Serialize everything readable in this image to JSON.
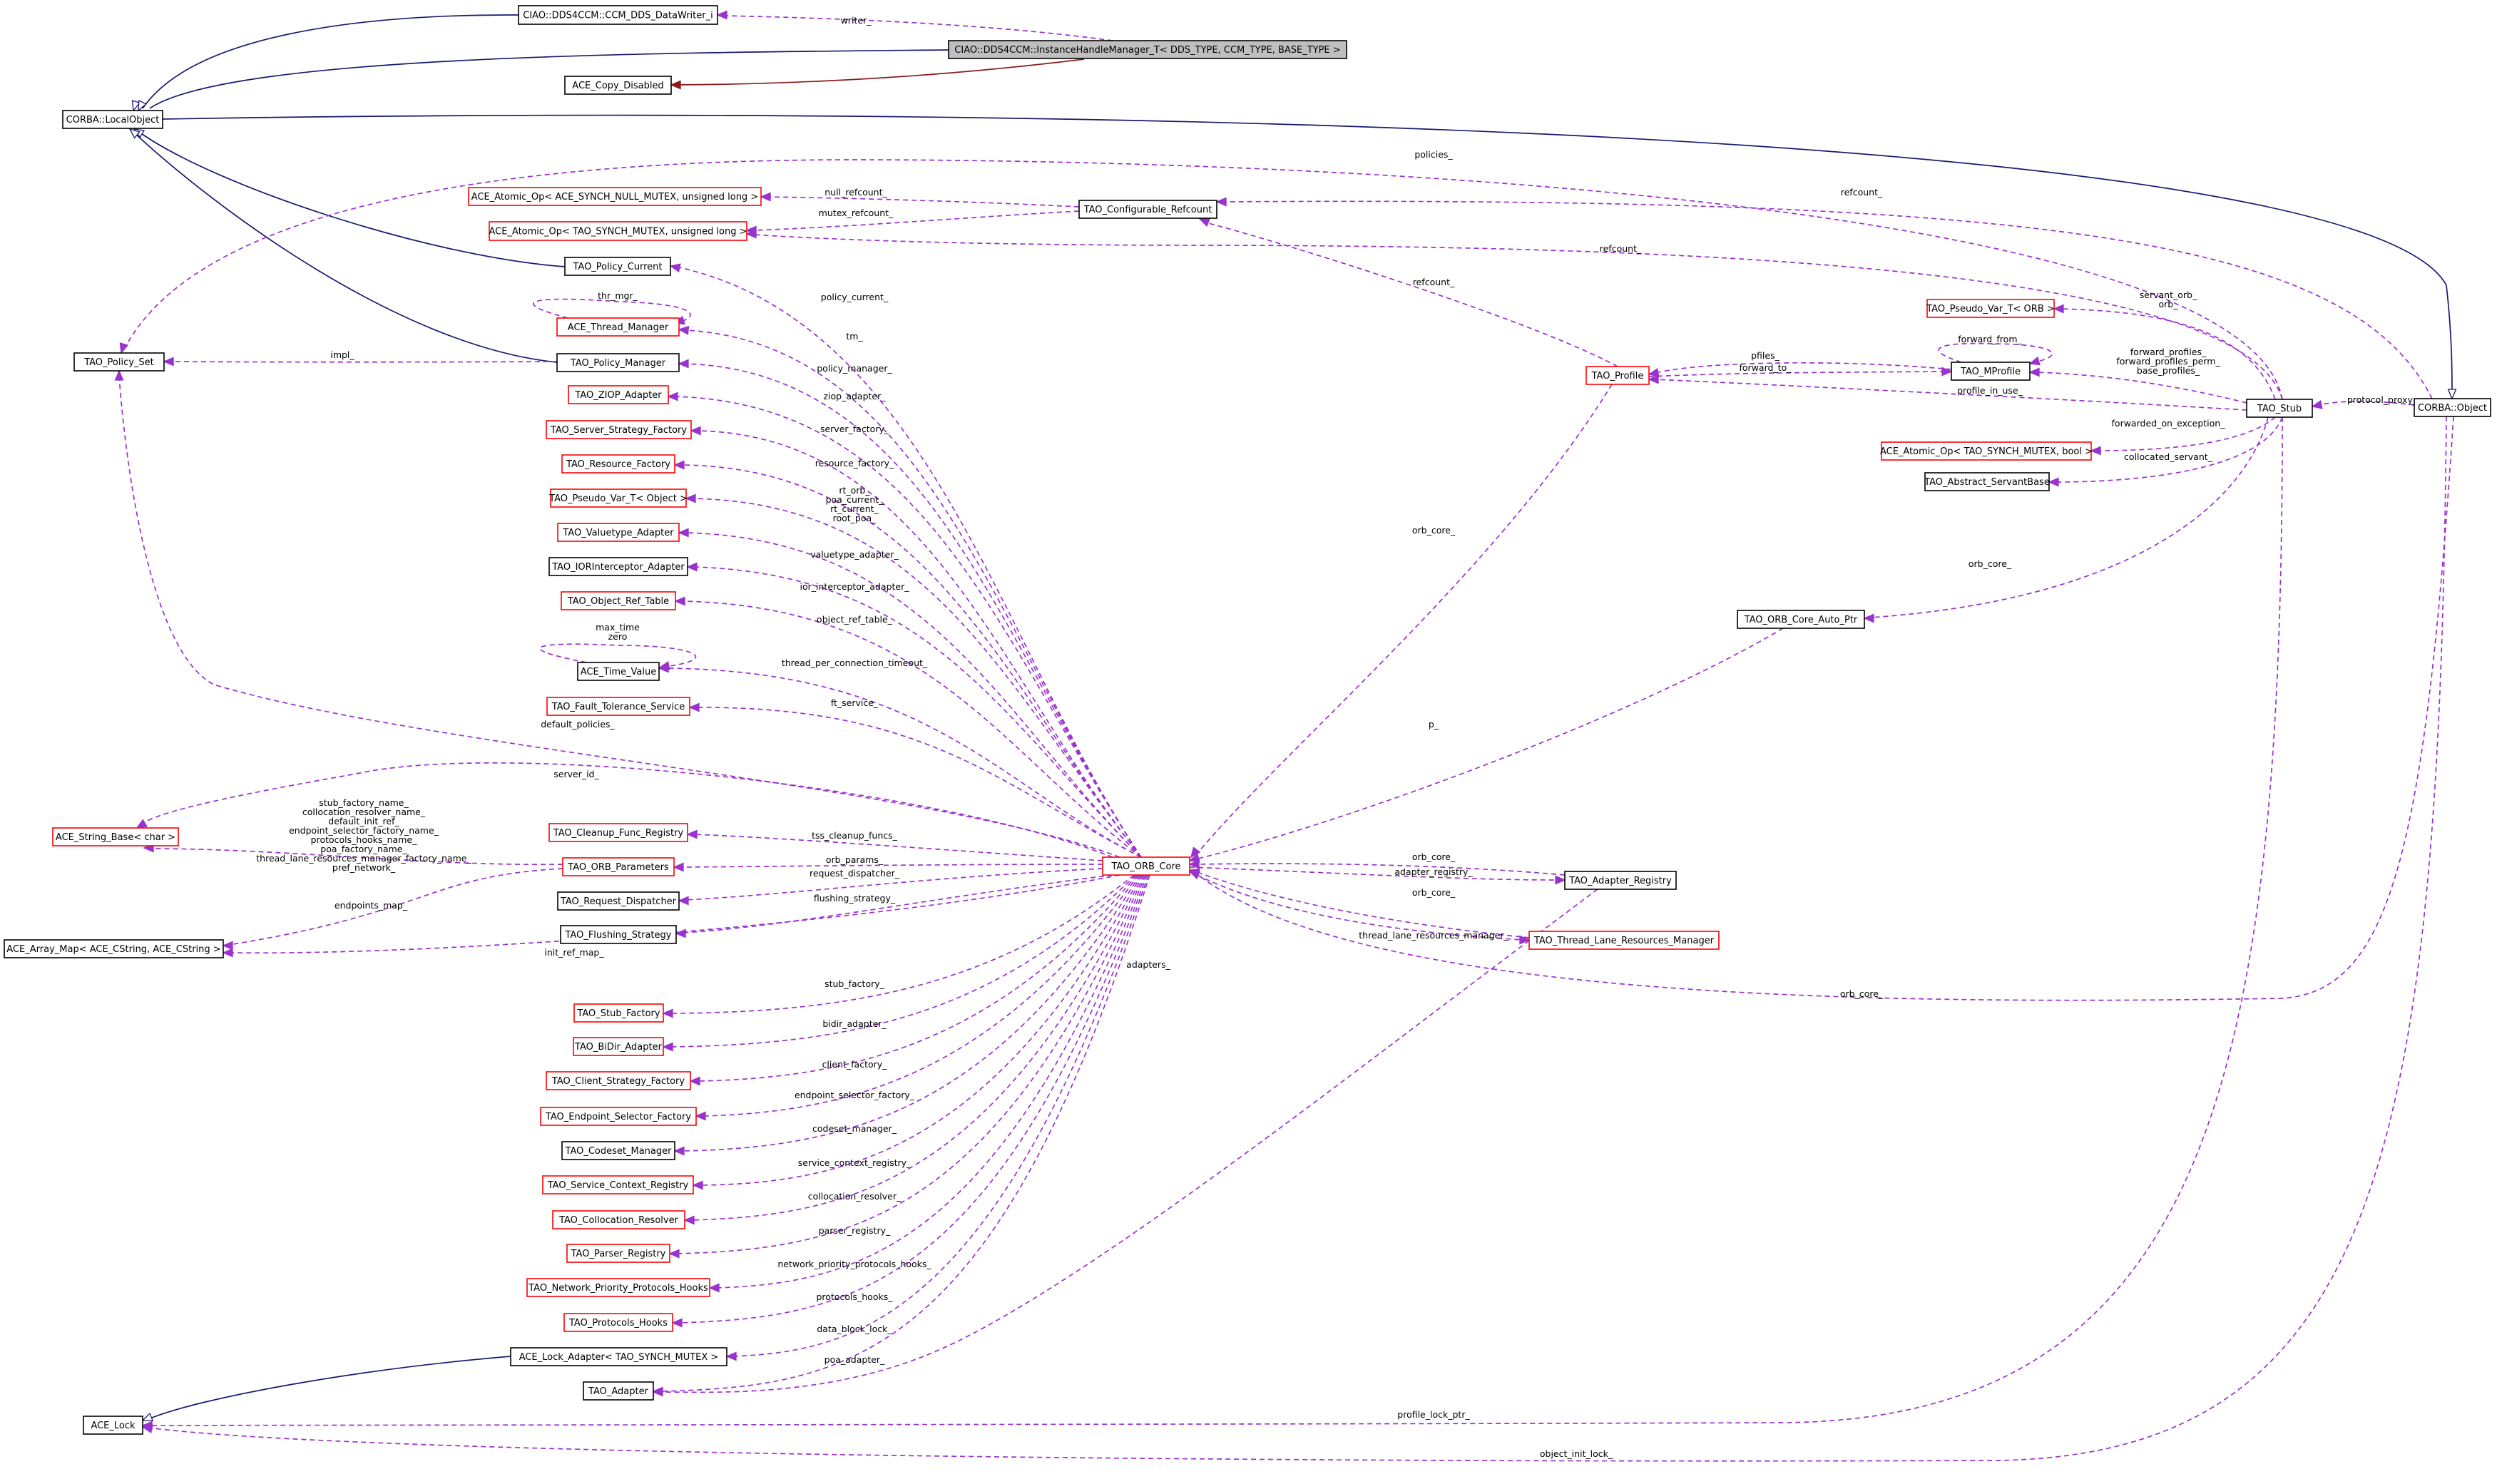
{
  "colors": {
    "inherit": "#191970",
    "private_inherit": "#8b1a1a",
    "usage": "#9a32cd",
    "box_red": "#ff0000",
    "box_black": "#000000",
    "box_focus_fill": "#bfbfbf"
  },
  "nodes": [
    {
      "id": "dw",
      "label": "CIAO::DDS4CCM::CCM_DDS_DataWriter_i",
      "style": "black"
    },
    {
      "id": "ihm",
      "label": "CIAO::DDS4CCM::InstanceHandleManager_T< DDS_TYPE, CCM_TYPE, BASE_TYPE >",
      "style": "focus"
    },
    {
      "id": "copy",
      "label": "ACE_Copy_Disabled",
      "style": "black"
    },
    {
      "id": "lo",
      "label": "CORBA::LocalObject",
      "style": "black"
    },
    {
      "id": "aon",
      "label": "ACE_Atomic_Op< ACE_SYNCH_NULL_MUTEX, unsigned long >",
      "style": "red"
    },
    {
      "id": "aom",
      "label": "ACE_Atomic_Op< TAO_SYNCH_MUTEX, unsigned long >",
      "style": "red"
    },
    {
      "id": "cref",
      "label": "TAO_Configurable_Refcount",
      "style": "black"
    },
    {
      "id": "pc",
      "label": "TAO_Policy_Current",
      "style": "black"
    },
    {
      "id": "thm",
      "label": "ACE_Thread_Manager",
      "style": "red"
    },
    {
      "id": "pset",
      "label": "TAO_Policy_Set",
      "style": "black"
    },
    {
      "id": "pm",
      "label": "TAO_Policy_Manager",
      "style": "black"
    },
    {
      "id": "ziop",
      "label": "TAO_ZIOP_Adapter",
      "style": "red"
    },
    {
      "id": "ssf",
      "label": "TAO_Server_Strategy_Factory",
      "style": "red"
    },
    {
      "id": "rf",
      "label": "TAO_Resource_Factory",
      "style": "red"
    },
    {
      "id": "pvo",
      "label": "TAO_Pseudo_Var_T< Object >",
      "style": "red"
    },
    {
      "id": "vta",
      "label": "TAO_Valuetype_Adapter",
      "style": "red"
    },
    {
      "id": "iora",
      "label": "TAO_IORInterceptor_Adapter",
      "style": "black"
    },
    {
      "id": "ort",
      "label": "TAO_Object_Ref_Table",
      "style": "red"
    },
    {
      "id": "tv",
      "label": "ACE_Time_Value",
      "style": "black"
    },
    {
      "id": "fts",
      "label": "TAO_Fault_Tolerance_Service",
      "style": "red"
    },
    {
      "id": "sb",
      "label": "ACE_String_Base< char >",
      "style": "red"
    },
    {
      "id": "cfr",
      "label": "TAO_Cleanup_Func_Registry",
      "style": "red"
    },
    {
      "id": "op",
      "label": "TAO_ORB_Parameters",
      "style": "red"
    },
    {
      "id": "rd",
      "label": "TAO_Request_Dispatcher",
      "style": "black"
    },
    {
      "id": "am",
      "label": "ACE_Array_Map< ACE_CString, ACE_CString >",
      "style": "black"
    },
    {
      "id": "fs",
      "label": "TAO_Flushing_Strategy",
      "style": "black"
    },
    {
      "id": "stf",
      "label": "TAO_Stub_Factory",
      "style": "red"
    },
    {
      "id": "bidir",
      "label": "TAO_BiDir_Adapter",
      "style": "red"
    },
    {
      "id": "csf",
      "label": "TAO_Client_Strategy_Factory",
      "style": "red"
    },
    {
      "id": "esf",
      "label": "TAO_Endpoint_Selector_Factory",
      "style": "red"
    },
    {
      "id": "cm",
      "label": "TAO_Codeset_Manager",
      "style": "black"
    },
    {
      "id": "scr",
      "label": "TAO_Service_Context_Registry",
      "style": "red"
    },
    {
      "id": "cr",
      "label": "TAO_Collocation_Resolver",
      "style": "red"
    },
    {
      "id": "pr",
      "label": "TAO_Parser_Registry",
      "style": "red"
    },
    {
      "id": "nph",
      "label": "TAO_Network_Priority_Protocols_Hooks",
      "style": "red"
    },
    {
      "id": "ph",
      "label": "TAO_Protocols_Hooks",
      "style": "red"
    },
    {
      "id": "lad",
      "label": "ACE_Lock_Adapter< TAO_SYNCH_MUTEX >",
      "style": "black"
    },
    {
      "id": "ad",
      "label": "TAO_Adapter",
      "style": "black"
    },
    {
      "id": "lock",
      "label": "ACE_Lock",
      "style": "black"
    },
    {
      "id": "core",
      "label": "TAO_ORB_Core",
      "style": "red"
    },
    {
      "id": "prof",
      "label": "TAO_Profile",
      "style": "red"
    },
    {
      "id": "mprof",
      "label": "TAO_MProfile",
      "style": "black"
    },
    {
      "id": "pvorb",
      "label": "TAO_Pseudo_Var_T< ORB >",
      "style": "red"
    },
    {
      "id": "aob",
      "label": "ACE_Atomic_Op< TAO_SYNCH_MUTEX, bool >",
      "style": "red"
    },
    {
      "id": "asb",
      "label": "TAO_Abstract_ServantBase",
      "style": "black"
    },
    {
      "id": "cap",
      "label": "TAO_ORB_Core_Auto_Ptr",
      "style": "black"
    },
    {
      "id": "stub",
      "label": "TAO_Stub",
      "style": "black"
    },
    {
      "id": "obj",
      "label": "CORBA::Object",
      "style": "black"
    },
    {
      "id": "areg",
      "label": "TAO_Adapter_Registry",
      "style": "black"
    },
    {
      "id": "tlrm",
      "label": "TAO_Thread_Lane_Resources_Manager",
      "style": "red"
    }
  ],
  "edge_labels": {
    "writer": "writer_",
    "policies": "policies_",
    "null_refcount": "null_refcount_",
    "refcount": "refcount_",
    "mutex_refcount": "mutex_refcount_",
    "thr_mgr": "thr_mgr_",
    "impl": "impl_",
    "policy_current": "policy_current_",
    "tm": "tm_",
    "policy_manager": "policy_manager_",
    "ziop_adapter": "ziop_adapter_",
    "server_factory": "server_factory_",
    "resource_factory": "resource_factory_",
    "rt_orb": "rt_orb_",
    "poa_current": "poa_current_",
    "rt_current": "rt_current_",
    "root_poa": "root_poa_",
    "valuetype_adapter": "valuetype_adapter_",
    "ior_interceptor_adapter": "ior_interceptor_adapter_",
    "object_ref_table": "object_ref_table_",
    "max_time": "max_time",
    "zero": "zero",
    "thread_per_connection_timeout": "thread_per_connection_timeout_",
    "ft_service": "ft_service_",
    "default_policies": "default_policies_",
    "server_id": "server_id_",
    "stub_factory_name": "stub_factory_name_",
    "collocation_resolver_name": "collocation_resolver_name_",
    "default_init_ref": "default_init_ref_",
    "endpoint_selector_factory_name": "endpoint_selector_factory_name_",
    "protocols_hooks_name": "protocols_hooks_name_",
    "poa_factory_name": "poa_factory_name_",
    "thread_lane_resources_manager_factory_name": "thread_lane_resources_manager_factory_name_",
    "pref_network": "pref_network_",
    "endpoints_map": "endpoints_map_",
    "tss_cleanup_funcs": "tss_cleanup_funcs_",
    "orb_params": "orb_params_",
    "request_dispatcher": "request_dispatcher_",
    "flushing_strategy": "flushing_strategy_",
    "init_ref_map": "init_ref_map_",
    "stub_factory": "stub_factory_",
    "bidir_adapter": "bidir_adapter_",
    "client_factory": "client_factory_",
    "endpoint_selector_factory": "endpoint_selector_factory_",
    "codeset_manager": "codeset_manager_",
    "service_context_registry": "service_context_registry_",
    "collocation_resolver": "collocation_resolver_",
    "parser_registry": "parser_registry_",
    "network_priority_protocols_hooks": "network_priority_protocols_hooks_",
    "protocols_hooks": "protocols_hooks_",
    "data_block_lock": "data_block_lock_",
    "poa_adapter": "poa_adapter_",
    "adapters": "adapters_",
    "profile_lock_ptr": "profile_lock_ptr_",
    "object_init_lock": "object_init_lock_",
    "orb_core": "orb_core_",
    "adapter_registry": "adapter_registry_",
    "thread_lane_resources_manager": "thread_lane_resources_manager_",
    "p": "p_",
    "pfiles": "pfiles_",
    "forward_to": "forward_to_",
    "forward_from": "forward_from_",
    "profile_in_use": "profile_in_use_",
    "servant_orb": "servant_orb_",
    "orb": "orb_",
    "forward_profiles": "forward_profiles_",
    "forward_profiles_perm": "forward_profiles_perm_",
    "base_profiles": "base_profiles_",
    "forwarded_on_exception": "forwarded_on_exception_",
    "collocated_servant": "collocated_servant_",
    "protocol_proxy": "protocol_proxy_"
  }
}
